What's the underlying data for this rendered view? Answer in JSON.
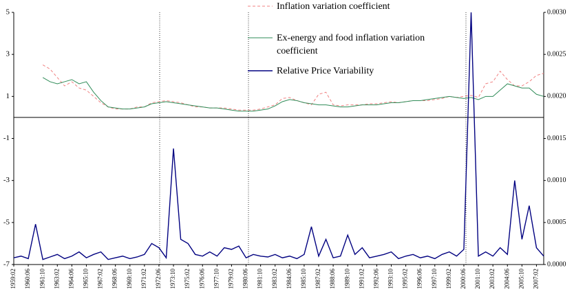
{
  "chart_data": {
    "type": "line",
    "categories": [
      "1959:02",
      null,
      "1960:06",
      null,
      "1961:10",
      null,
      "1963:02",
      null,
      "1964:06",
      null,
      "1965:10",
      null,
      "1967:02",
      null,
      "1968:06",
      null,
      "1969:10",
      null,
      "1971:02",
      null,
      "1972:06",
      null,
      "1973:10",
      null,
      "1975:02",
      null,
      "1976:06",
      null,
      "1977:10",
      null,
      "1979:02",
      null,
      "1980:06",
      null,
      "1981:10",
      null,
      "1983:02",
      null,
      "1984:06",
      null,
      "1985:10",
      null,
      "1987:02",
      null,
      "1988:06",
      null,
      "1989:10",
      null,
      "1991:02",
      null,
      "1992:06",
      null,
      "1993:10",
      null,
      "1995:02",
      null,
      "1996:06",
      null,
      "1997:10",
      null,
      "1999:02",
      null,
      "2000:06",
      null,
      "2001:10",
      null,
      "2003:02",
      null,
      "2004:06",
      null,
      "2005:10",
      null,
      "2007:02",
      null
    ],
    "ylim": [
      -7,
      5
    ],
    "yticks": [
      -7,
      -5,
      -3,
      -1,
      1,
      3,
      5
    ],
    "y2lim": [
      0,
      0.003
    ],
    "y2ticks": [
      {
        "value": 0,
        "label": "0.0000"
      },
      {
        "value": 0.0005,
        "label": "0.0005"
      },
      {
        "value": 0.001,
        "label": "0.0010"
      },
      {
        "value": 0.0015,
        "label": "0.0015"
      },
      {
        "value": 0.002,
        "label": "0.0020"
      },
      {
        "value": 0.0025,
        "label": "0.0025"
      },
      {
        "value": 0.003,
        "label": "0.0030"
      }
    ],
    "series": [
      {
        "name": "Inflation variation coefficient",
        "color": "#f08080",
        "dashed": true,
        "values": [
          null,
          null,
          null,
          null,
          2.5,
          2.3,
          1.9,
          1.5,
          1.7,
          1.4,
          1.3,
          1.0,
          0.7,
          0.5,
          0.4,
          0.4,
          0.4,
          0.5,
          0.5,
          0.7,
          0.75,
          0.8,
          0.75,
          0.7,
          0.6,
          0.5,
          0.5,
          0.45,
          0.45,
          0.45,
          0.4,
          0.35,
          0.35,
          0.35,
          0.4,
          0.5,
          0.6,
          0.9,
          0.95,
          0.8,
          0.7,
          0.6,
          1.1,
          1.2,
          0.6,
          0.55,
          0.6,
          0.6,
          0.6,
          0.65,
          0.65,
          0.7,
          0.75,
          0.7,
          0.75,
          0.8,
          0.8,
          0.8,
          0.85,
          0.9,
          1.0,
          0.95,
          1.0,
          1.05,
          0.95,
          1.6,
          1.7,
          2.2,
          1.8,
          1.5,
          1.5,
          1.7,
          2.0,
          2.1
        ]
      },
      {
        "name": "Ex-energy and food inflation variation coefficient",
        "color": "#2e8b57",
        "values": [
          null,
          null,
          null,
          null,
          1.9,
          1.7,
          1.6,
          1.7,
          1.8,
          1.6,
          1.7,
          1.2,
          0.8,
          0.5,
          0.45,
          0.4,
          0.4,
          0.45,
          0.5,
          0.65,
          0.7,
          0.75,
          0.7,
          0.65,
          0.6,
          0.55,
          0.5,
          0.45,
          0.45,
          0.4,
          0.35,
          0.3,
          0.3,
          0.3,
          0.35,
          0.4,
          0.55,
          0.75,
          0.85,
          0.8,
          0.7,
          0.65,
          0.6,
          0.6,
          0.55,
          0.5,
          0.5,
          0.55,
          0.6,
          0.6,
          0.6,
          0.65,
          0.7,
          0.7,
          0.75,
          0.8,
          0.8,
          0.85,
          0.9,
          0.95,
          1.0,
          0.95,
          0.9,
          0.95,
          0.85,
          1.0,
          1.0,
          1.3,
          1.6,
          1.5,
          1.4,
          1.4,
          1.1,
          1.0
        ]
      },
      {
        "name": "Relative Price Variability",
        "color": "#000080",
        "axis": "y2",
        "values": [
          8e-05,
          0.0001,
          7e-05,
          0.00048,
          6e-05,
          9e-05,
          0.00012,
          7e-05,
          0.0001,
          0.00015,
          8e-05,
          0.00012,
          0.00015,
          6e-05,
          8e-05,
          0.0001,
          7e-05,
          9e-05,
          0.00012,
          0.00025,
          0.0002,
          8e-05,
          0.00138,
          0.0003,
          0.00025,
          0.00012,
          0.0001,
          0.00015,
          0.0001,
          0.0002,
          0.00018,
          0.00022,
          8e-05,
          0.00012,
          0.0001,
          9e-05,
          0.00012,
          8e-05,
          0.0001,
          7e-05,
          0.00012,
          0.00045,
          0.0001,
          0.0003,
          8e-05,
          0.0001,
          0.00035,
          0.00012,
          0.0002,
          8e-05,
          0.0001,
          0.00012,
          0.00015,
          7e-05,
          0.0001,
          0.00012,
          8e-05,
          0.0001,
          7e-05,
          0.00012,
          0.00015,
          0.0001,
          0.00018,
          0.003,
          0.0001,
          0.00015,
          0.0001,
          0.0002,
          0.00012,
          0.001,
          0.0003,
          0.0007,
          0.0002,
          0.0001
        ]
      }
    ]
  }
}
